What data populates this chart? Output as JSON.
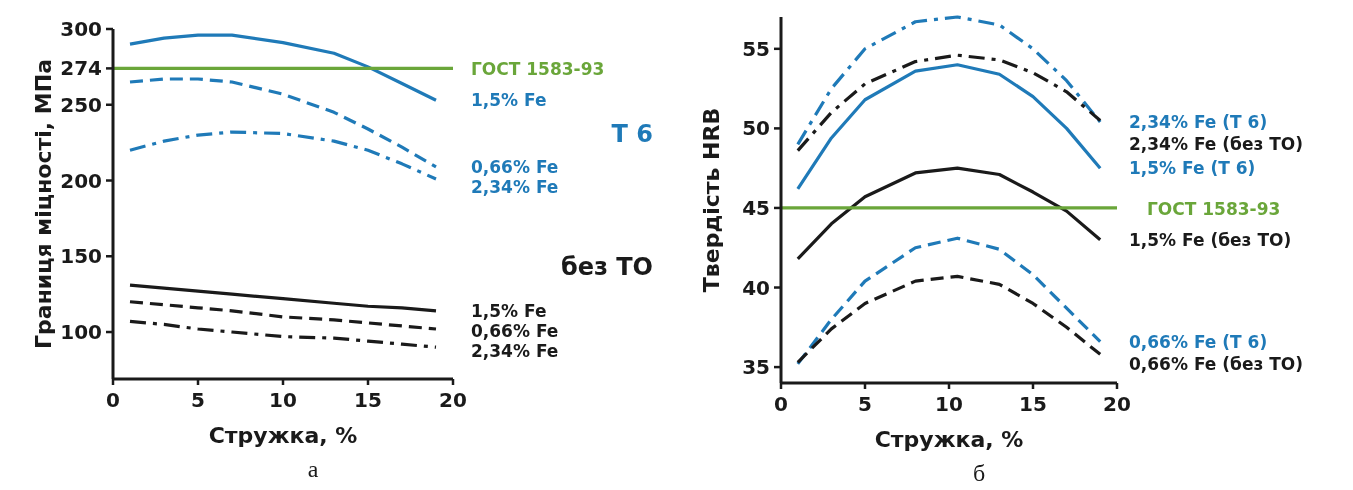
{
  "chart_data": [
    {
      "type": "line",
      "xlabel": "Стружка, %",
      "ylabel": "Границя міцності, МПа",
      "xlim": [
        0,
        20
      ],
      "ylim": [
        69,
        300
      ],
      "xticks": [
        0,
        5,
        10,
        15,
        20
      ],
      "yticks": [
        100,
        150,
        200,
        250,
        274,
        300
      ],
      "grid": false,
      "x": [
        1,
        3,
        5,
        7,
        10,
        13,
        15,
        17,
        19
      ],
      "series": [
        {
          "name": "1,5% Fe",
          "color": "#1f7ab8",
          "line_style": "solid",
          "values": [
            290,
            294,
            296,
            296,
            291,
            284,
            275,
            264,
            253
          ]
        },
        {
          "name": "0,66% Fe",
          "color": "#1f7ab8",
          "line_style": "dashed",
          "values": [
            265,
            267,
            267,
            265,
            257,
            245,
            234,
            222,
            209
          ]
        },
        {
          "name": "2,34% Fe",
          "color": "#1f7ab8",
          "line_style": "dashdot",
          "values": [
            220,
            226,
            230,
            232,
            231,
            226,
            220,
            211,
            201
          ]
        },
        {
          "name": "1,5% Fe",
          "color": "#1a1a1a",
          "line_style": "solid",
          "values": [
            131,
            129,
            127,
            125,
            122,
            119,
            117,
            116,
            114
          ]
        },
        {
          "name": "0,66% Fe",
          "color": "#1a1a1a",
          "line_style": "dashed",
          "values": [
            120,
            118,
            116,
            114,
            110,
            108,
            106,
            104,
            102
          ]
        },
        {
          "name": "2,34% Fe",
          "color": "#1a1a1a",
          "line_style": "dashdot",
          "values": [
            107,
            105,
            102,
            100,
            97,
            96,
            94,
            92,
            90
          ]
        }
      ],
      "ref_lines": [
        {
          "axis": "y",
          "value": 274,
          "label": "ГОСТ 1583-93",
          "color": "#6aa63a"
        }
      ],
      "annotations": [
        "Т 6",
        "без ТО",
        "а"
      ]
    },
    {
      "type": "line",
      "xlabel": "Стружка, %",
      "ylabel": "Твердість HRB",
      "xlim": [
        0,
        20
      ],
      "ylim": [
        34,
        57
      ],
      "xticks": [
        0,
        5,
        10,
        15,
        20
      ],
      "yticks": [
        35,
        40,
        45,
        50,
        55
      ],
      "grid": false,
      "x": [
        1,
        3,
        5,
        8,
        10.5,
        13,
        15,
        17,
        19
      ],
      "series": [
        {
          "name": "2,34% Fe (Т 6)",
          "color": "#1f7ab8",
          "line_style": "dashdot",
          "values": [
            49,
            52.5,
            55,
            56.7,
            57,
            56.5,
            55,
            53,
            50.4
          ]
        },
        {
          "name": "2,34% Fe (без ТО)",
          "color": "#1a1a1a",
          "line_style": "dashdot",
          "values": [
            48.6,
            51,
            52.8,
            54.2,
            54.6,
            54.3,
            53.5,
            52.3,
            50.5
          ]
        },
        {
          "name": "1,5% Fe (Т 6)",
          "color": "#1f7ab8",
          "line_style": "solid",
          "values": [
            46.2,
            49.4,
            51.8,
            53.6,
            54,
            53.4,
            52,
            50,
            47.5
          ]
        },
        {
          "name": "1,5% Fe (без ТО)",
          "color": "#1a1a1a",
          "line_style": "solid",
          "values": [
            41.8,
            44,
            45.7,
            47.2,
            47.5,
            47.1,
            46,
            44.8,
            43
          ]
        },
        {
          "name": "0,66% Fe (Т 6)",
          "color": "#1f7ab8",
          "line_style": "dashed",
          "values": [
            35.2,
            38,
            40.4,
            42.5,
            43.1,
            42.4,
            40.8,
            38.7,
            36.6
          ]
        },
        {
          "name": "0,66% Fe (без ТО)",
          "color": "#1a1a1a",
          "line_style": "dashed",
          "values": [
            35.3,
            37.4,
            39,
            40.4,
            40.7,
            40.2,
            39,
            37.5,
            35.8
          ]
        }
      ],
      "ref_lines": [
        {
          "axis": "y",
          "value": 45,
          "label": "ГОСТ 1583-93",
          "color": "#6aa63a"
        }
      ],
      "annotations": [
        "б"
      ]
    }
  ]
}
